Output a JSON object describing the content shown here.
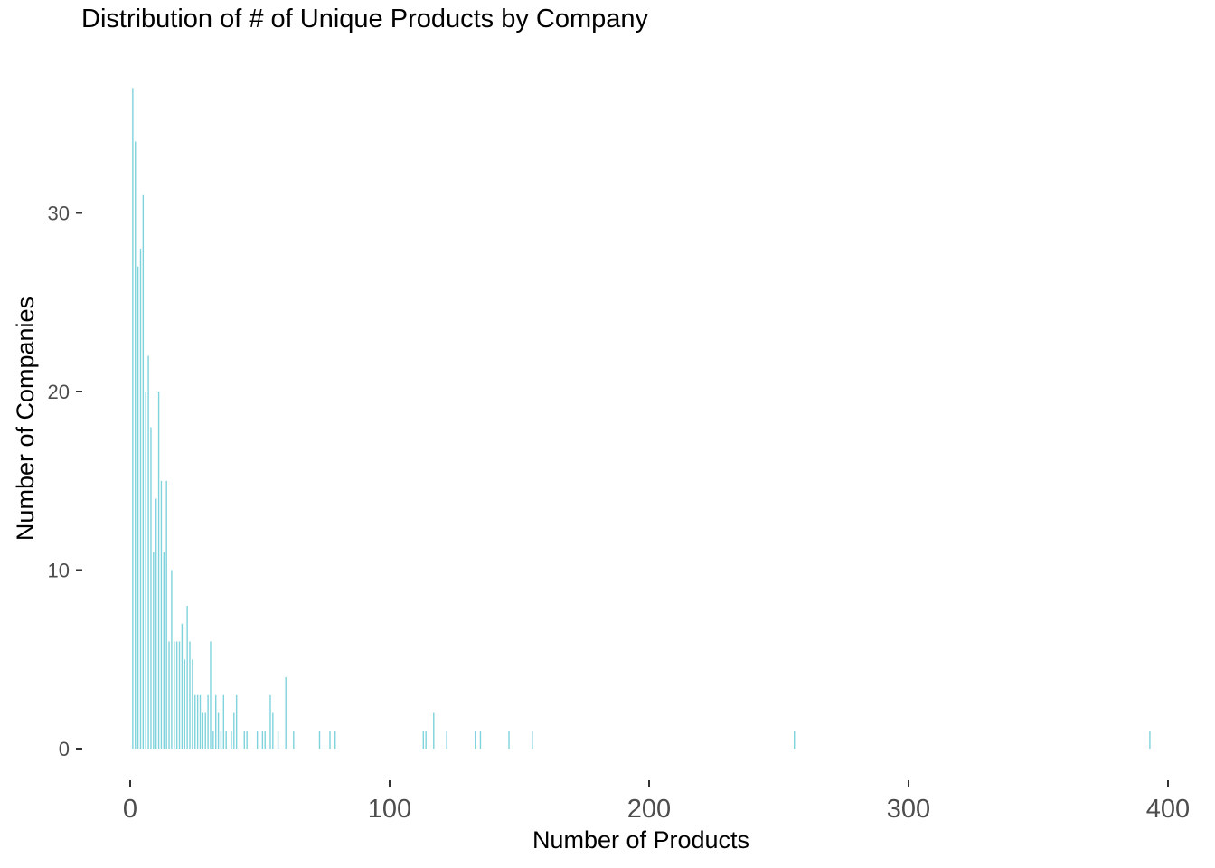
{
  "chart_data": {
    "type": "bar",
    "title": "Distribution of # of Unique Products by Company",
    "xlabel": "Number of Products",
    "ylabel": "Number of Companies",
    "xlim": [
      0,
      400
    ],
    "ylim": [
      0,
      37
    ],
    "x_ticks": [
      0,
      100,
      200,
      300,
      400
    ],
    "y_ticks": [
      0,
      10,
      20,
      30
    ],
    "grid": false,
    "bar_color": "#7fd3dc",
    "x": [
      1,
      2,
      3,
      4,
      5,
      6,
      7,
      8,
      9,
      10,
      11,
      12,
      13,
      14,
      15,
      16,
      17,
      18,
      19,
      20,
      21,
      22,
      23,
      24,
      25,
      26,
      27,
      28,
      29,
      30,
      31,
      32,
      33,
      34,
      35,
      36,
      37,
      39,
      40,
      41,
      44,
      45,
      49,
      51,
      52,
      54,
      55,
      57,
      60,
      63,
      73,
      77,
      79,
      113,
      114,
      117,
      122,
      133,
      135,
      146,
      155,
      256,
      393
    ],
    "values": [
      37,
      34,
      27,
      28,
      31,
      20,
      22,
      18,
      11,
      14,
      20,
      15,
      11,
      15,
      6,
      10,
      6,
      6,
      6,
      7,
      5,
      8,
      6,
      5,
      3,
      3,
      3,
      2,
      2,
      3,
      6,
      1,
      3,
      2,
      1,
      3,
      1,
      1,
      2,
      3,
      1,
      1,
      1,
      1,
      1,
      3,
      2,
      1,
      4,
      1,
      1,
      1,
      1,
      1,
      1,
      2,
      1,
      1,
      1,
      1,
      1,
      1,
      1
    ]
  }
}
